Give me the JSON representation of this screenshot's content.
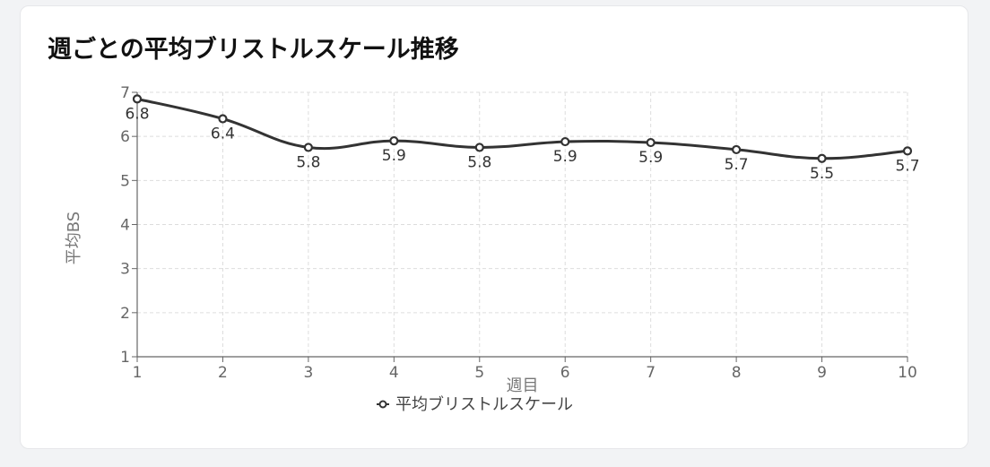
{
  "title": "週ごとの平均ブリストルスケール推移",
  "chart_data": {
    "type": "line",
    "title": "週ごとの平均ブリストルスケール推移",
    "xlabel": "週目",
    "ylabel": "平均BS",
    "x": [
      1,
      2,
      3,
      4,
      5,
      6,
      7,
      8,
      9,
      10
    ],
    "x_tick_labels": [
      "1",
      "2",
      "3",
      "4",
      "5",
      "6",
      "7",
      "8",
      "9",
      "10"
    ],
    "y_tick_labels": [
      "1",
      "2",
      "3",
      "4",
      "5",
      "6",
      "7"
    ],
    "ylim": [
      1,
      7
    ],
    "grid": true,
    "legend_position": "bottom",
    "line_color": "#333333",
    "series": [
      {
        "name": "平均ブリストルスケール",
        "values": [
          6.85,
          6.4,
          5.75,
          5.9,
          5.75,
          5.88,
          5.86,
          5.7,
          5.5,
          5.67
        ],
        "data_labels": [
          "6.8",
          "6.4",
          "5.8",
          "5.9",
          "5.8",
          "5.9",
          "5.9",
          "5.7",
          "5.5",
          "5.7"
        ]
      }
    ]
  }
}
